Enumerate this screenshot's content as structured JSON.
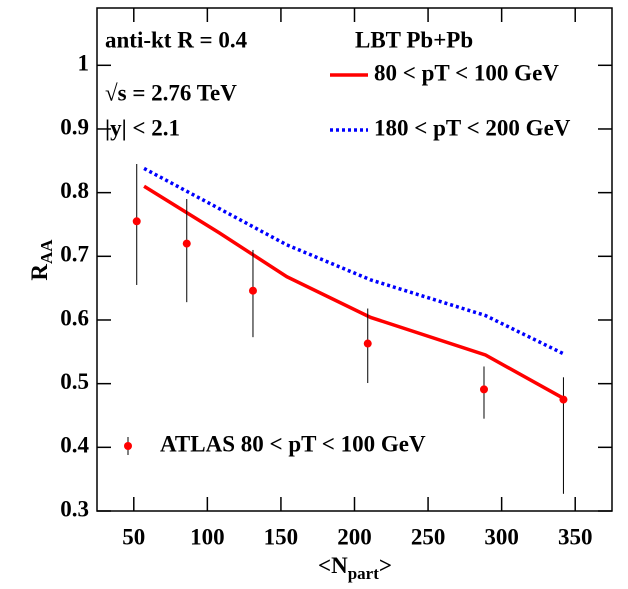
{
  "chart_data": {
    "type": "line",
    "annotations": [
      "anti-kt R = 0.4",
      "√s = 2.76 TeV",
      "|y| < 2.1",
      "LBT Pb+Pb"
    ],
    "xlabel": {
      "main": "<N",
      "sub": "part",
      "end": ">"
    },
    "ylabel": {
      "main": "R",
      "sub": "AA"
    },
    "xlim": [
      25,
      375
    ],
    "ylim": [
      0.3,
      1.09
    ],
    "xticks": [
      50,
      100,
      150,
      200,
      250,
      300,
      350
    ],
    "yticks": [
      0.3,
      0.4,
      0.5,
      0.6,
      0.7,
      0.8,
      0.9,
      1
    ],
    "series": [
      {
        "name": "80 < pT < 100 GeV",
        "color": "#ff0000",
        "style": "solid",
        "x": [
          57,
          108,
          154,
          211,
          289,
          342
        ],
        "values": [
          0.81,
          0.737,
          0.668,
          0.604,
          0.545,
          0.477
        ]
      },
      {
        "name": "180 < pT < 200 GeV",
        "color": "#0000ff",
        "style": "dotted",
        "x": [
          57,
          108,
          154,
          211,
          289,
          342
        ],
        "values": [
          0.838,
          0.775,
          0.718,
          0.663,
          0.607,
          0.547
        ]
      }
    ],
    "points": {
      "name": "ATLAS 80 < pT < 100 GeV",
      "color": "#ff0000",
      "x": [
        52,
        86,
        131,
        209,
        288,
        342
      ],
      "values": [
        0.755,
        0.72,
        0.646,
        0.563,
        0.491,
        0.475
      ],
      "err_low": [
        0.1,
        0.092,
        0.073,
        0.062,
        0.046,
        0.148
      ],
      "err_high": [
        0.09,
        0.07,
        0.064,
        0.055,
        0.036,
        0.035
      ]
    }
  }
}
